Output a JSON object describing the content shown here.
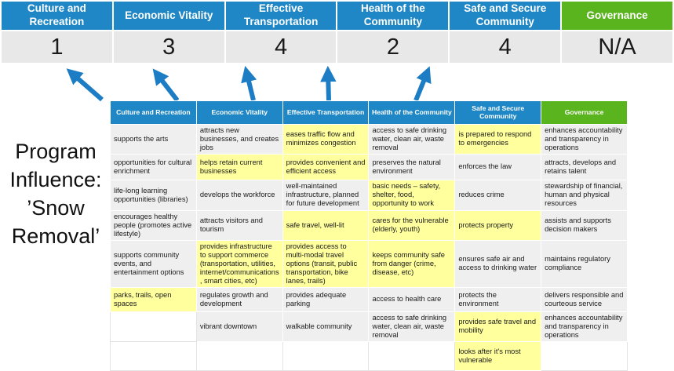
{
  "title": {
    "text": "Program Influence: ’Snow Removal’"
  },
  "colors": {
    "header_blue": "#1f87c5",
    "header_green": "#5ab41e",
    "highlight_yellow": "#ffff9e",
    "score_band_gray": "#e8e8e8",
    "cell_gray": "#efefef",
    "arrow_blue": "#1d7dc4"
  },
  "scoreboard": {
    "columns": [
      {
        "label": "Culture and Recreation",
        "score": "1",
        "color": "#1f87c5"
      },
      {
        "label": "Economic Vitality",
        "score": "3",
        "color": "#1f87c5"
      },
      {
        "label": "Effective Transportation",
        "score": "4",
        "color": "#1f87c5"
      },
      {
        "label": "Health of the Community",
        "score": "2",
        "color": "#1f87c5"
      },
      {
        "label": "Safe and Secure Community",
        "score": "4",
        "color": "#1f87c5"
      },
      {
        "label": "Governance",
        "score": "N/A",
        "color": "#5ab41e"
      }
    ]
  },
  "matrix": {
    "headers": [
      {
        "label": "Culture and Recreation",
        "color": "#1f87c5"
      },
      {
        "label": "Economic Vitality",
        "color": "#1f87c5"
      },
      {
        "label": "Effective Transportation",
        "color": "#1f87c5"
      },
      {
        "label": "Health of the Community",
        "color": "#1f87c5"
      },
      {
        "label": "Safe and Secure Community",
        "color": "#1f87c5"
      },
      {
        "label": "Governance",
        "color": "#5ab41e"
      }
    ],
    "rows": [
      [
        {
          "text": "supports the arts",
          "highlight": false
        },
        {
          "text": "attracts new businesses, and creates jobs",
          "highlight": false
        },
        {
          "text": "eases traffic flow and minimizes congestion",
          "highlight": true
        },
        {
          "text": "access to safe drinking water, clean air, waste removal",
          "highlight": false
        },
        {
          "text": "is prepared to respond to emergencies",
          "highlight": true
        },
        {
          "text": "enhances accountability and transparency in operations",
          "highlight": false
        }
      ],
      [
        {
          "text": "opportunities for cultural enrichment",
          "highlight": false
        },
        {
          "text": "helps retain current businesses",
          "highlight": true
        },
        {
          "text": "provides convenient and efficient access",
          "highlight": true
        },
        {
          "text": "preserves the natural environment",
          "highlight": false
        },
        {
          "text": "enforces the law",
          "highlight": false
        },
        {
          "text": "attracts, develops and retains talent",
          "highlight": false
        }
      ],
      [
        {
          "text": "life-long learning opportunities (libraries)",
          "highlight": false
        },
        {
          "text": "develops the workforce",
          "highlight": false
        },
        {
          "text": "well-maintained infrastructure, planned for future development",
          "highlight": false
        },
        {
          "text": "basic needs – safety, shelter, food, opportunity to work",
          "highlight": true
        },
        {
          "text": "reduces crime",
          "highlight": false
        },
        {
          "text": "stewardship of financial, human and physical resources",
          "highlight": false
        }
      ],
      [
        {
          "text": "encourages healthy people (promotes active lifestyle)",
          "highlight": false
        },
        {
          "text": "attracts visitors and tourism",
          "highlight": false
        },
        {
          "text": "safe travel, well-lit",
          "highlight": true
        },
        {
          "text": "cares for the vulnerable (elderly, youth)",
          "highlight": true
        },
        {
          "text": "protects property",
          "highlight": true
        },
        {
          "text": "assists and supports decision makers",
          "highlight": false
        }
      ],
      [
        {
          "text": "supports community events, and entertainment options",
          "highlight": false
        },
        {
          "text": "provides infrastructure to support commerce (transportation, utilities, internet/communications, smart cities, etc)",
          "highlight": true
        },
        {
          "text": "provides access to multi-modal travel options (transit, public transportation, bike lanes, trails)",
          "highlight": true
        },
        {
          "text": "keeps community safe from danger (crime, disease, etc)",
          "highlight": true
        },
        {
          "text": "ensures safe air and access to drinking water",
          "highlight": false
        },
        {
          "text": "maintains regulatory compliance",
          "highlight": false
        }
      ],
      [
        {
          "text": "parks, trails, open spaces",
          "highlight": true
        },
        {
          "text": "regulates growth and development",
          "highlight": false
        },
        {
          "text": "provides adequate parking",
          "highlight": false
        },
        {
          "text": "access to health care",
          "highlight": false
        },
        {
          "text": "protects the environment",
          "highlight": false
        },
        {
          "text": "delivers responsible and courteous service",
          "highlight": false
        }
      ],
      [
        {
          "text": "",
          "highlight": false
        },
        {
          "text": "vibrant downtown",
          "highlight": false
        },
        {
          "text": "walkable community",
          "highlight": false
        },
        {
          "text": "access to safe drinking water, clean air, waste removal",
          "highlight": false
        },
        {
          "text": "provides safe travel and mobility",
          "highlight": true
        },
        {
          "text": "enhances accountability and transparency in operations",
          "highlight": false
        }
      ],
      [
        {
          "text": "",
          "highlight": false
        },
        {
          "text": "",
          "highlight": false
        },
        {
          "text": "",
          "highlight": false
        },
        {
          "text": "",
          "highlight": false
        },
        {
          "text": "looks after it's most vulnerable",
          "highlight": true
        },
        {
          "text": "",
          "highlight": false
        }
      ]
    ]
  }
}
